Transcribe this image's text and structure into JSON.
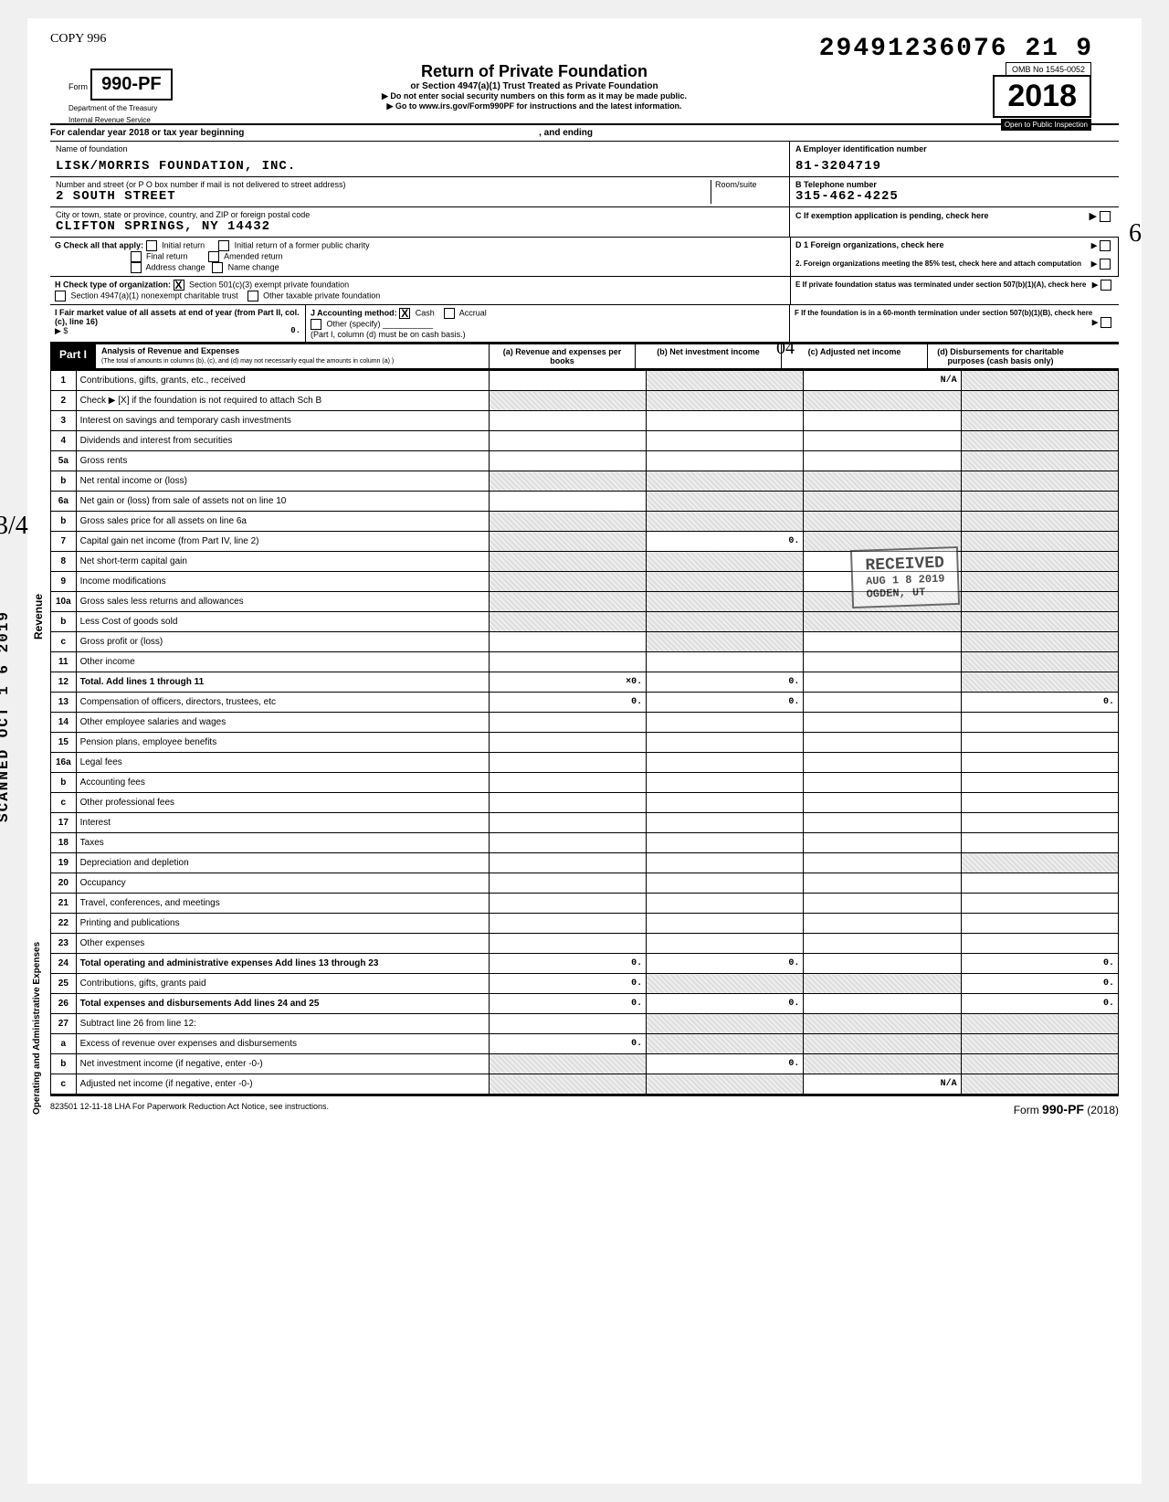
{
  "header": {
    "copy_mark": "COPY 996",
    "form_prefix": "Form",
    "form_number": "990-PF",
    "dept1": "Department of the Treasury",
    "dept2": "Internal Revenue Service",
    "title": "Return of Private Foundation",
    "subtitle1": "or Section 4947(a)(1) Trust Treated as Private Foundation",
    "subtitle2": "▶ Do not enter social security numbers on this form as it may be made public.",
    "subtitle3": "▶ Go to www.irs.gov/Form990PF for instructions and the latest information.",
    "scan_number": "29491236076 21",
    "scan_suffix": "9",
    "omb": "OMB No 1545-0052",
    "year": "2018",
    "open_inspection": "Open to Public Inspection"
  },
  "calendar_year": "For calendar year 2018 or tax year beginning",
  "calendar_ending": ", and ending",
  "foundation": {
    "name_label": "Name of foundation",
    "name": "LISK/MORRIS FOUNDATION, INC.",
    "addr_label": "Number and street (or P O box number if mail is not delivered to street address)",
    "room_label": "Room/suite",
    "addr": "2 SOUTH STREET",
    "city_label": "City or town, state or province, country, and ZIP or foreign postal code",
    "city": "CLIFTON SPRINGS, NY  14432"
  },
  "right_block": {
    "a_label": "A Employer identification number",
    "a_value": "81-3204719",
    "b_label": "B  Telephone number",
    "b_value": "315-462-4225",
    "c_label": "C  If exemption application is pending, check here",
    "d1_label": "D 1  Foreign organizations, check here",
    "d2_label": "2.  Foreign organizations meeting the 85% test, check here and attach computation",
    "e_label": "E  If private foundation status was terminated under section 507(b)(1)(A), check here",
    "f_label": "F  If the foundation is in a 60-month termination under section 507(b)(1)(B), check here"
  },
  "section_g": {
    "label": "G  Check all that apply:",
    "opts": [
      "Initial return",
      "Final return",
      "Address change",
      "Initial return of a former public charity",
      "Amended return",
      "Name change"
    ]
  },
  "section_h": {
    "label": "H  Check type of organization:",
    "opt1": "Section 501(c)(3) exempt private foundation",
    "opt2": "Section 4947(a)(1) nonexempt charitable trust",
    "opt3": "Other taxable private foundation"
  },
  "section_i": {
    "label": "I  Fair market value of all assets at end of year (from Part II, col. (c), line 16)",
    "arrow": "▶ $",
    "value": "0."
  },
  "section_j": {
    "label": "J  Accounting method:",
    "cash": "Cash",
    "accrual": "Accrual",
    "other": "Other (specify)",
    "note": "(Part I, column (d) must be on cash basis.)"
  },
  "part1": {
    "label": "Part I",
    "title": "Analysis of Revenue and Expenses",
    "subtitle": "(The total of amounts in columns (b), (c), and (d) may not necessarily equal the amounts in column (a) )",
    "col_a": "(a) Revenue and expenses per books",
    "col_b": "(b) Net investment income",
    "col_c": "(c) Adjusted net income",
    "col_d": "(d) Disbursements for charitable purposes (cash basis only)"
  },
  "rows": [
    {
      "n": "1",
      "desc": "Contributions, gifts, grants, etc., received",
      "a": "",
      "b": "shaded",
      "c": "N/A",
      "d": "shaded"
    },
    {
      "n": "2",
      "desc": "Check ▶ [X] if the foundation is not required to attach Sch B",
      "a": "shaded",
      "b": "shaded",
      "c": "shaded",
      "d": "shaded"
    },
    {
      "n": "3",
      "desc": "Interest on savings and temporary cash investments",
      "a": "",
      "b": "",
      "c": "",
      "d": "shaded"
    },
    {
      "n": "4",
      "desc": "Dividends and interest from securities",
      "a": "",
      "b": "",
      "c": "",
      "d": "shaded"
    },
    {
      "n": "5a",
      "desc": "Gross rents",
      "a": "",
      "b": "",
      "c": "",
      "d": "shaded"
    },
    {
      "n": "b",
      "desc": "Net rental income or (loss)",
      "a": "shaded",
      "b": "shaded",
      "c": "shaded",
      "d": "shaded"
    },
    {
      "n": "6a",
      "desc": "Net gain or (loss) from sale of assets not on line 10",
      "a": "",
      "b": "shaded",
      "c": "shaded",
      "d": "shaded"
    },
    {
      "n": "b",
      "desc": "Gross sales price for all assets on line 6a",
      "a": "shaded",
      "b": "shaded",
      "c": "shaded",
      "d": "shaded"
    },
    {
      "n": "7",
      "desc": "Capital gain net income (from Part IV, line 2)",
      "a": "shaded",
      "b": "0.",
      "c": "shaded",
      "d": "shaded"
    },
    {
      "n": "8",
      "desc": "Net short-term capital gain",
      "a": "shaded",
      "b": "shaded",
      "c": "",
      "d": "shaded"
    },
    {
      "n": "9",
      "desc": "Income modifications",
      "a": "shaded",
      "b": "shaded",
      "c": "",
      "d": "shaded"
    },
    {
      "n": "10a",
      "desc": "Gross sales less returns and allowances",
      "a": "shaded",
      "b": "shaded",
      "c": "shaded",
      "d": "shaded"
    },
    {
      "n": "b",
      "desc": "Less Cost of goods sold",
      "a": "shaded",
      "b": "shaded",
      "c": "shaded",
      "d": "shaded"
    },
    {
      "n": "c",
      "desc": "Gross profit or (loss)",
      "a": "",
      "b": "shaded",
      "c": "",
      "d": "shaded"
    },
    {
      "n": "11",
      "desc": "Other income",
      "a": "",
      "b": "",
      "c": "",
      "d": "shaded"
    },
    {
      "n": "12",
      "desc": "Total. Add lines 1 through 11",
      "a": "×0.",
      "b": "0.",
      "c": "",
      "d": "shaded",
      "bold": true
    },
    {
      "n": "13",
      "desc": "Compensation of officers, directors, trustees, etc",
      "a": "0.",
      "b": "0.",
      "c": "",
      "d": "0."
    },
    {
      "n": "14",
      "desc": "Other employee salaries and wages",
      "a": "",
      "b": "",
      "c": "",
      "d": ""
    },
    {
      "n": "15",
      "desc": "Pension plans, employee benefits",
      "a": "",
      "b": "",
      "c": "",
      "d": ""
    },
    {
      "n": "16a",
      "desc": "Legal fees",
      "a": "",
      "b": "",
      "c": "",
      "d": ""
    },
    {
      "n": "b",
      "desc": "Accounting fees",
      "a": "",
      "b": "",
      "c": "",
      "d": ""
    },
    {
      "n": "c",
      "desc": "Other professional fees",
      "a": "",
      "b": "",
      "c": "",
      "d": ""
    },
    {
      "n": "17",
      "desc": "Interest",
      "a": "",
      "b": "",
      "c": "",
      "d": ""
    },
    {
      "n": "18",
      "desc": "Taxes",
      "a": "",
      "b": "",
      "c": "",
      "d": ""
    },
    {
      "n": "19",
      "desc": "Depreciation and depletion",
      "a": "",
      "b": "",
      "c": "",
      "d": "shaded"
    },
    {
      "n": "20",
      "desc": "Occupancy",
      "a": "",
      "b": "",
      "c": "",
      "d": ""
    },
    {
      "n": "21",
      "desc": "Travel, conferences, and meetings",
      "a": "",
      "b": "",
      "c": "",
      "d": ""
    },
    {
      "n": "22",
      "desc": "Printing and publications",
      "a": "",
      "b": "",
      "c": "",
      "d": ""
    },
    {
      "n": "23",
      "desc": "Other expenses",
      "a": "",
      "b": "",
      "c": "",
      "d": ""
    },
    {
      "n": "24",
      "desc": "Total operating and administrative expenses  Add lines 13 through 23",
      "a": "0.",
      "b": "0.",
      "c": "",
      "d": "0.",
      "bold": true
    },
    {
      "n": "25",
      "desc": "Contributions, gifts, grants paid",
      "a": "0.",
      "b": "shaded",
      "c": "shaded",
      "d": "0."
    },
    {
      "n": "26",
      "desc": "Total expenses and disbursements Add lines 24 and 25",
      "a": "0.",
      "b": "0.",
      "c": "",
      "d": "0.",
      "bold": true
    },
    {
      "n": "27",
      "desc": "Subtract line 26 from line 12:",
      "a": "",
      "b": "shaded",
      "c": "shaded",
      "d": "shaded"
    },
    {
      "n": "a",
      "desc": "Excess of revenue over expenses and disbursements",
      "a": "0.",
      "b": "shaded",
      "c": "shaded",
      "d": "shaded"
    },
    {
      "n": "b",
      "desc": "Net investment income (if negative, enter -0-)",
      "a": "shaded",
      "b": "0.",
      "c": "shaded",
      "d": "shaded"
    },
    {
      "n": "c",
      "desc": "Adjusted net income (if negative, enter -0-)",
      "a": "shaded",
      "b": "shaded",
      "c": "N/A",
      "d": "shaded"
    }
  ],
  "stamps": {
    "received": "RECEIVED",
    "received2": "AUG  1 8 2019",
    "received3": "OGDEN, UT",
    "scanned": "SCANNED OCT 1 6 2019",
    "fraction": "3/4",
    "circle04": "04",
    "circle6": "6"
  },
  "footer": {
    "left": "823501  12-11-18    LHA   For Paperwork Reduction Act Notice, see instructions.",
    "right_prefix": "Form ",
    "right_form": "990-PF",
    "right_suffix": " (2018)"
  },
  "side_labels": {
    "revenue": "Revenue",
    "expenses": "Operating and Administrative Expenses"
  }
}
